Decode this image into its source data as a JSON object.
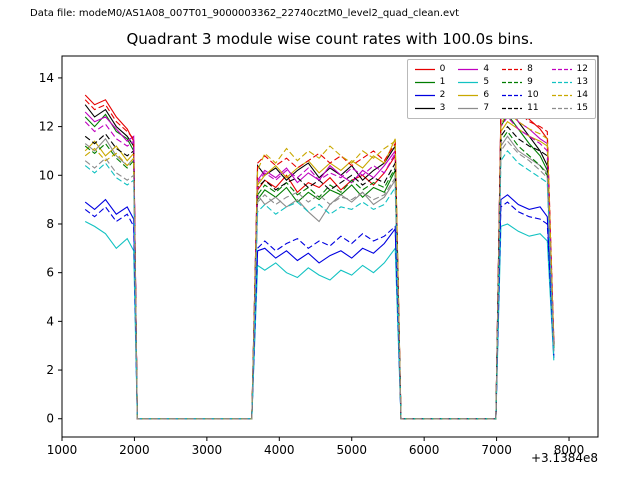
{
  "header": {
    "data_file_label": "Data file: modeM0/AS1A08_007T01_9000003362_22740cztM0_level2_quad_clean.evt"
  },
  "chart_data": {
    "type": "line",
    "title": "Quadrant 3 module wise count rates with 100.0s bins.",
    "xlabel": "",
    "ylabel": "",
    "x_offset_label": "+3.1384e8",
    "xlim": [
      1000,
      8400
    ],
    "ylim": [
      -0.75,
      14.9
    ],
    "x_ticks": [
      1000,
      2000,
      3000,
      4000,
      5000,
      6000,
      7000,
      8000
    ],
    "y_ticks": [
      0,
      2,
      4,
      6,
      8,
      10,
      12,
      14
    ],
    "grid": false,
    "legend_position": "upper right",
    "legend_ncol": 4,
    "x": [
      1320,
      1450,
      1600,
      1750,
      1900,
      1990,
      2040,
      3620,
      3700,
      3800,
      3950,
      4100,
      4250,
      4400,
      4550,
      4700,
      4850,
      5000,
      5150,
      5300,
      5450,
      5600,
      5680,
      6990,
      7060,
      7150,
      7300,
      7450,
      7600,
      7700,
      7790
    ],
    "series": [
      {
        "name": "0",
        "color": "#e60000",
        "dash": false,
        "values": [
          13.3,
          12.9,
          13.1,
          12.4,
          11.9,
          11.4,
          0,
          0,
          9.4,
          9.8,
          9.5,
          10.0,
          9.3,
          9.7,
          9.5,
          9.9,
          9.4,
          9.8,
          10.0,
          9.6,
          10.1,
          10.8,
          0,
          0,
          12.6,
          13.2,
          12.7,
          12.3,
          11.9,
          11.5,
          3.1
        ]
      },
      {
        "name": "1",
        "color": "#007d00",
        "dash": false,
        "values": [
          12.4,
          12.0,
          12.5,
          11.8,
          11.5,
          11.0,
          0,
          0,
          9.0,
          9.4,
          9.1,
          9.5,
          8.9,
          9.3,
          9.0,
          9.4,
          9.2,
          9.6,
          9.1,
          9.5,
          9.3,
          10.2,
          0,
          0,
          12.0,
          12.5,
          11.9,
          11.3,
          10.8,
          10.2,
          2.9
        ]
      },
      {
        "name": "2",
        "color": "#0000e0",
        "dash": false,
        "values": [
          8.9,
          8.6,
          9.0,
          8.4,
          8.7,
          8.2,
          0,
          0,
          6.9,
          7.0,
          6.6,
          6.9,
          6.5,
          6.8,
          6.4,
          6.7,
          6.9,
          6.6,
          7.0,
          6.8,
          7.2,
          7.8,
          0,
          0,
          9.0,
          9.2,
          8.8,
          8.6,
          8.7,
          8.3,
          2.5
        ]
      },
      {
        "name": "3",
        "color": "#000000",
        "dash": false,
        "values": [
          12.9,
          12.4,
          12.7,
          12.0,
          11.6,
          11.2,
          0,
          0,
          10.4,
          10.0,
          10.3,
          9.8,
          10.2,
          10.5,
          9.9,
          10.3,
          10.0,
          10.4,
          9.8,
          10.2,
          10.5,
          11.2,
          0,
          0,
          12.4,
          12.9,
          12.2,
          11.6,
          11.0,
          10.4,
          3.0
        ]
      },
      {
        "name": "4",
        "color": "#c000c0",
        "dash": false,
        "values": [
          12.6,
          12.2,
          12.4,
          11.9,
          11.4,
          11.6,
          0,
          0,
          9.8,
          10.2,
          9.9,
          10.3,
          9.7,
          10.1,
          9.8,
          10.4,
          10.0,
          9.7,
          10.2,
          9.9,
          10.4,
          11.0,
          0,
          0,
          12.3,
          12.8,
          12.2,
          11.9,
          11.5,
          11.3,
          3.2
        ]
      },
      {
        "name": "5",
        "color": "#12c2c2",
        "dash": false,
        "values": [
          8.1,
          7.9,
          7.6,
          7.0,
          7.4,
          6.9,
          0,
          0,
          6.3,
          6.1,
          6.4,
          6.0,
          5.8,
          6.2,
          5.9,
          5.7,
          6.1,
          5.9,
          6.3,
          6.0,
          6.4,
          7.0,
          0,
          0,
          7.9,
          8.0,
          7.7,
          7.5,
          7.6,
          7.3,
          2.4
        ]
      },
      {
        "name": "6",
        "color": "#c9a800",
        "dash": false,
        "values": [
          11.0,
          11.4,
          10.8,
          11.2,
          10.6,
          10.9,
          0,
          0,
          9.6,
          10.0,
          10.4,
          9.9,
          10.3,
          10.6,
          10.1,
          10.5,
          10.2,
          10.6,
          10.3,
          10.8,
          10.5,
          11.5,
          0,
          0,
          11.8,
          12.2,
          11.9,
          11.6,
          11.4,
          11.2,
          3.0
        ]
      },
      {
        "name": "7",
        "color": "#8c8c8c",
        "dash": false,
        "values": [
          11.3,
          11.0,
          11.5,
          10.8,
          10.4,
          10.7,
          0,
          0,
          9.2,
          8.8,
          9.1,
          8.7,
          9.0,
          8.5,
          8.1,
          8.8,
          9.2,
          8.9,
          9.3,
          8.8,
          9.1,
          9.8,
          0,
          0,
          11.2,
          11.6,
          11.0,
          10.7,
          10.4,
          10.1,
          2.8
        ]
      },
      {
        "name": "8",
        "color": "#e60000",
        "dash": true,
        "values": [
          13.1,
          12.7,
          12.9,
          12.2,
          11.8,
          11.5,
          0,
          0,
          10.5,
          10.8,
          10.4,
          10.7,
          10.3,
          10.6,
          10.9,
          10.5,
          10.8,
          10.4,
          10.7,
          11.0,
          10.6,
          11.3,
          0,
          0,
          12.5,
          13.0,
          12.6,
          12.2,
          12.0,
          11.8,
          3.3
        ]
      },
      {
        "name": "9",
        "color": "#007d00",
        "dash": true,
        "values": [
          11.2,
          10.9,
          11.3,
          10.7,
          10.3,
          10.6,
          0,
          0,
          9.2,
          9.6,
          9.3,
          9.7,
          9.2,
          9.5,
          9.1,
          9.6,
          9.3,
          9.8,
          9.4,
          9.7,
          9.5,
          10.3,
          0,
          0,
          11.4,
          11.8,
          11.2,
          10.8,
          10.4,
          10.0,
          2.9
        ]
      },
      {
        "name": "10",
        "color": "#0000e0",
        "dash": true,
        "values": [
          8.6,
          8.3,
          8.7,
          8.1,
          8.4,
          7.9,
          0,
          0,
          7.0,
          7.3,
          6.9,
          7.2,
          7.4,
          7.0,
          7.3,
          7.1,
          7.5,
          7.2,
          7.6,
          7.3,
          7.5,
          7.9,
          0,
          0,
          8.7,
          8.9,
          8.5,
          8.3,
          8.2,
          8.0,
          2.6
        ]
      },
      {
        "name": "11",
        "color": "#000000",
        "dash": true,
        "values": [
          11.6,
          11.3,
          11.7,
          11.1,
          10.8,
          11.0,
          0,
          0,
          9.5,
          9.8,
          9.4,
          9.7,
          9.9,
          9.5,
          9.8,
          9.4,
          9.7,
          10.0,
          9.6,
          9.9,
          9.7,
          10.5,
          0,
          0,
          11.6,
          12.0,
          11.5,
          11.2,
          11.0,
          10.8,
          3.0
        ]
      },
      {
        "name": "12",
        "color": "#c000c0",
        "dash": true,
        "values": [
          12.2,
          11.8,
          12.1,
          11.5,
          11.2,
          11.4,
          0,
          0,
          9.7,
          10.1,
          9.8,
          10.2,
          9.9,
          10.3,
          9.8,
          10.1,
          9.9,
          10.3,
          10.0,
          10.4,
          10.1,
          10.9,
          0,
          0,
          12.0,
          12.4,
          11.9,
          11.6,
          11.3,
          11.0,
          3.1
        ]
      },
      {
        "name": "13",
        "color": "#12c2c2",
        "dash": true,
        "values": [
          10.4,
          10.1,
          10.5,
          9.9,
          9.6,
          9.8,
          0,
          0,
          8.5,
          8.8,
          8.4,
          8.7,
          8.9,
          8.5,
          8.8,
          8.4,
          8.7,
          8.6,
          8.9,
          8.6,
          8.8,
          9.5,
          0,
          0,
          10.6,
          11.0,
          10.5,
          10.2,
          9.9,
          9.7,
          2.7
        ]
      },
      {
        "name": "14",
        "color": "#c9a800",
        "dash": true,
        "values": [
          10.8,
          11.1,
          10.6,
          10.9,
          10.4,
          10.7,
          0,
          0,
          10.2,
          10.9,
          10.5,
          11.1,
          10.6,
          11.0,
          10.7,
          11.2,
          10.8,
          10.5,
          11.0,
          10.7,
          11.1,
          11.4,
          0,
          0,
          12.1,
          12.6,
          12.2,
          11.9,
          11.7,
          11.5,
          3.2
        ]
      },
      {
        "name": "15",
        "color": "#8c8c8c",
        "dash": true,
        "values": [
          10.6,
          10.3,
          10.7,
          10.1,
          9.8,
          10.0,
          0,
          0,
          8.9,
          9.2,
          8.8,
          9.1,
          9.3,
          8.9,
          9.2,
          8.8,
          9.1,
          9.0,
          9.3,
          9.0,
          9.2,
          9.9,
          0,
          0,
          11.0,
          11.4,
          10.9,
          10.6,
          10.2,
          9.9,
          2.8
        ]
      }
    ]
  }
}
